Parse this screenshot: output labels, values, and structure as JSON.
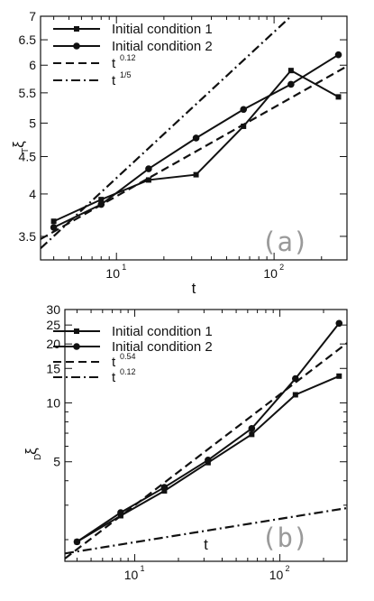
{
  "chart_data": [
    {
      "type": "line",
      "panel_label": "(a)",
      "xlabel": "t",
      "ylabel": "ξ",
      "ylabel_sub": "T",
      "x_scale": "log",
      "y_scale": "log",
      "xlim": [
        3.3,
        290
      ],
      "ylim": [
        3.25,
        7.0
      ],
      "x_tick_labels": [
        {
          "value": 10,
          "base": "10",
          "exp": "1"
        },
        {
          "value": 100,
          "base": "10",
          "exp": "2"
        }
      ],
      "y_ticks": [
        3.5,
        4,
        4.5,
        5,
        5.5,
        6,
        6.5,
        7
      ],
      "y_tick_labels": [
        "3.5",
        "4",
        "4.5",
        "5",
        "5.5",
        "6",
        "6.5",
        "7"
      ],
      "legend_position": "top-left",
      "series": [
        {
          "name": "Initial condition 1",
          "marker": "square",
          "style": "solid",
          "x": [
            4,
            8,
            16,
            32,
            64,
            128,
            256
          ],
          "y": [
            3.67,
            3.93,
            4.18,
            4.25,
            4.95,
            5.9,
            5.43
          ]
        },
        {
          "name": "Initial condition 2",
          "marker": "circle",
          "style": "solid",
          "x": [
            4,
            8,
            16,
            32,
            64,
            128,
            256
          ],
          "y": [
            3.6,
            3.87,
            4.33,
            4.77,
            5.22,
            5.65,
            6.2
          ]
        },
        {
          "name": "t",
          "name_exp": "0.12",
          "marker": "none",
          "style": "dashed",
          "x": [
            3.3,
            290
          ],
          "y": [
            3.47,
            5.98
          ]
        },
        {
          "name": "t",
          "name_exp": "1/5",
          "marker": "none",
          "style": "dashdot",
          "x": [
            3.3,
            128
          ],
          "y": [
            3.37,
            7.0
          ]
        }
      ]
    },
    {
      "type": "line",
      "panel_label": "(b)",
      "xlabel": "t",
      "ylabel": "ξ",
      "ylabel_sub": "D",
      "x_scale": "log",
      "y_scale": "log",
      "xlim": [
        3.3,
        290
      ],
      "ylim": [
        1.55,
        30
      ],
      "x_tick_labels": [
        {
          "value": 10,
          "base": "10",
          "exp": "1"
        },
        {
          "value": 100,
          "base": "10",
          "exp": "2"
        }
      ],
      "y_ticks": [
        5,
        10,
        15,
        20,
        25,
        30
      ],
      "y_tick_labels": [
        "5",
        "10",
        "15",
        "20",
        "25",
        "30"
      ],
      "legend_position": "top-left",
      "series": [
        {
          "name": "Initial condition 1",
          "marker": "square",
          "style": "solid",
          "x": [
            4,
            8,
            16,
            32,
            64,
            128,
            256
          ],
          "y": [
            1.95,
            2.65,
            3.55,
            4.95,
            6.9,
            11.0,
            13.7
          ]
        },
        {
          "name": "Initial condition 2",
          "marker": "circle",
          "style": "solid",
          "x": [
            4,
            8,
            16,
            32,
            64,
            128,
            256
          ],
          "y": [
            1.95,
            2.75,
            3.7,
            5.1,
            7.4,
            13.3,
            25.5
          ]
        },
        {
          "name": "t",
          "name_exp": "0.54",
          "marker": "none",
          "style": "dashed",
          "x": [
            3.3,
            290
          ],
          "y": [
            1.6,
            20.2
          ]
        },
        {
          "name": "t",
          "name_exp": "0.12",
          "marker": "none",
          "style": "dashdot",
          "x": [
            3.3,
            290
          ],
          "y": [
            1.7,
            2.9
          ]
        }
      ]
    }
  ]
}
